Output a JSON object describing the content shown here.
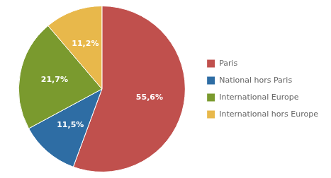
{
  "chart_data": {
    "type": "pie",
    "categories": [
      "Paris",
      "National hors Paris",
      "International Europe",
      "International hors Europe"
    ],
    "values": [
      55.6,
      11.5,
      21.7,
      11.2
    ],
    "value_labels": [
      "55,6%",
      "11,5%",
      "21,7%",
      "11,2%"
    ],
    "colors": [
      "#c0504d",
      "#2e6da4",
      "#7a9a2e",
      "#e8b84b"
    ],
    "legend": "right",
    "data_labels": true
  }
}
